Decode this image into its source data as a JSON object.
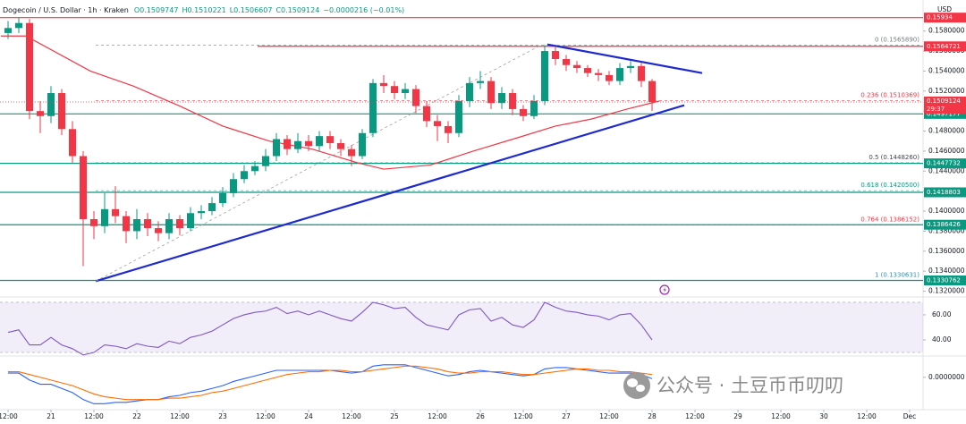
{
  "chart_data": {
    "type": "candlestick",
    "title": "Dogecoin / U.S. Dollar · 1h · Kraken",
    "header_values": [
      "O0.1509747",
      "H0.1510221",
      "L0.1506607",
      "C0.1509124",
      "−0.0000216 (−0.01%)"
    ],
    "currency": "USD",
    "up_color": "#089981",
    "down_color": "#f23645",
    "xlim": [
      9.75,
      267.75
    ],
    "xticks": [
      {
        "value": 12,
        "label": "12:00"
      },
      {
        "value": 24,
        "label": "21"
      },
      {
        "value": 36,
        "label": "12:00"
      },
      {
        "value": 48,
        "label": "22"
      },
      {
        "value": 60,
        "label": "12:00"
      },
      {
        "value": 72,
        "label": "23"
      },
      {
        "value": 84,
        "label": "12:00"
      },
      {
        "value": 96,
        "label": "24"
      },
      {
        "value": 108,
        "label": "12:00"
      },
      {
        "value": 120,
        "label": "25"
      },
      {
        "value": 132,
        "label": "12:00"
      },
      {
        "value": 144,
        "label": "26"
      },
      {
        "value": 156,
        "label": "12:00"
      },
      {
        "value": 168,
        "label": "27"
      },
      {
        "value": 180,
        "label": "12:00"
      },
      {
        "value": 192,
        "label": "28"
      },
      {
        "value": 204,
        "label": "12:00"
      },
      {
        "value": 216,
        "label": "29"
      },
      {
        "value": 228,
        "label": "12:00"
      },
      {
        "value": 240,
        "label": "30"
      },
      {
        "value": 252,
        "label": "12:00"
      },
      {
        "value": 264,
        "label": "Dec"
      }
    ],
    "ylim": [
      0.1316,
      0.1611
    ],
    "yticks": [
      {
        "value": 0.132,
        "label": "0.1320000"
      },
      {
        "value": 0.134,
        "label": "0.1340000"
      },
      {
        "value": 0.136,
        "label": "0.1360000"
      },
      {
        "value": 0.138,
        "label": "0.1380000"
      },
      {
        "value": 0.14,
        "label": "0.1400000"
      },
      {
        "value": 0.142,
        "label": "0.1420000"
      },
      {
        "value": 0.144,
        "label": "0.1440000"
      },
      {
        "value": 0.146,
        "label": "0.1460000"
      },
      {
        "value": 0.148,
        "label": "0.1480000"
      },
      {
        "value": 0.15,
        "label": "0.1500000"
      },
      {
        "value": 0.152,
        "label": "0.1520000"
      },
      {
        "value": 0.154,
        "label": "0.1540000"
      },
      {
        "value": 0.156,
        "label": "0.1560000"
      },
      {
        "value": 0.158,
        "label": "0.1580000"
      }
    ],
    "x": [
      12,
      15,
      18,
      21,
      24,
      27,
      30,
      33,
      36,
      39,
      42,
      45,
      48,
      51,
      54,
      57,
      60,
      63,
      66,
      69,
      72,
      75,
      78,
      81,
      84,
      87,
      90,
      93,
      96,
      99,
      102,
      105,
      108,
      111,
      114,
      117,
      120,
      123,
      126,
      129,
      132,
      135,
      138,
      141,
      144,
      147,
      150,
      153,
      156,
      159,
      162,
      165,
      168,
      171,
      174,
      177,
      180,
      183,
      186,
      189,
      192
    ],
    "open": [
      0.1578,
      0.1583,
      0.1588,
      0.15,
      0.1495,
      0.1518,
      0.1482,
      0.1455,
      0.1392,
      0.1385,
      0.1402,
      0.1395,
      0.138,
      0.1392,
      0.1383,
      0.1378,
      0.1392,
      0.1383,
      0.1398,
      0.14,
      0.1408,
      0.1418,
      0.1432,
      0.144,
      0.1445,
      0.1455,
      0.1472,
      0.1462,
      0.147,
      0.1465,
      0.1475,
      0.1468,
      0.1462,
      0.1455,
      0.1478,
      0.1528,
      0.1525,
      0.1518,
      0.1522,
      0.1505,
      0.149,
      0.1485,
      0.1478,
      0.151,
      0.1528,
      0.153,
      0.1508,
      0.1518,
      0.1502,
      0.1495,
      0.151,
      0.156,
      0.1552,
      0.1546,
      0.1543,
      0.1538,
      0.1536,
      0.153,
      0.1543,
      0.1545,
      0.153
    ],
    "high": [
      0.159,
      0.1593,
      0.1592,
      0.151,
      0.1525,
      0.1522,
      0.149,
      0.146,
      0.14,
      0.1418,
      0.1425,
      0.14,
      0.1402,
      0.1398,
      0.139,
      0.1398,
      0.1396,
      0.1404,
      0.1406,
      0.1414,
      0.1424,
      0.1438,
      0.1446,
      0.145,
      0.1462,
      0.1478,
      0.1476,
      0.1478,
      0.1476,
      0.148,
      0.148,
      0.1472,
      0.1466,
      0.1482,
      0.1532,
      0.1536,
      0.153,
      0.1528,
      0.1526,
      0.151,
      0.1496,
      0.149,
      0.1516,
      0.1534,
      0.154,
      0.1534,
      0.1524,
      0.1522,
      0.1506,
      0.1516,
      0.1566,
      0.1564,
      0.1556,
      0.155,
      0.1546,
      0.1542,
      0.154,
      0.1548,
      0.155,
      0.1548,
      0.1532
    ],
    "low": [
      0.1572,
      0.1578,
      0.1492,
      0.1478,
      0.1488,
      0.1476,
      0.1448,
      0.1345,
      0.1372,
      0.1378,
      0.1388,
      0.1368,
      0.1372,
      0.1375,
      0.137,
      0.1372,
      0.1376,
      0.138,
      0.1392,
      0.1396,
      0.1404,
      0.1414,
      0.1428,
      0.1436,
      0.144,
      0.145,
      0.1456,
      0.1458,
      0.146,
      0.146,
      0.1462,
      0.1455,
      0.1445,
      0.1452,
      0.1474,
      0.1518,
      0.1512,
      0.1512,
      0.1498,
      0.1484,
      0.147,
      0.1468,
      0.1474,
      0.1504,
      0.1522,
      0.1502,
      0.1502,
      0.1496,
      0.149,
      0.1492,
      0.1506,
      0.1546,
      0.154,
      0.1538,
      0.1534,
      0.153,
      0.1526,
      0.1526,
      0.1538,
      0.1524,
      0.15
    ],
    "close": [
      0.1583,
      0.1588,
      0.15,
      0.1495,
      0.1518,
      0.1482,
      0.1455,
      0.1392,
      0.1385,
      0.1402,
      0.1395,
      0.138,
      0.1392,
      0.1383,
      0.1378,
      0.1392,
      0.1383,
      0.1398,
      0.14,
      0.1408,
      0.1418,
      0.1432,
      0.144,
      0.1445,
      0.1455,
      0.1472,
      0.1462,
      0.147,
      0.1465,
      0.1475,
      0.1468,
      0.1462,
      0.1455,
      0.1478,
      0.1528,
      0.1525,
      0.1518,
      0.1522,
      0.1505,
      0.149,
      0.1485,
      0.1478,
      0.151,
      0.1528,
      0.153,
      0.1508,
      0.1518,
      0.1502,
      0.1495,
      0.151,
      0.156,
      0.1552,
      0.1546,
      0.1543,
      0.1538,
      0.1536,
      0.153,
      0.1543,
      0.1545,
      0.153,
      0.1509
    ],
    "ma": {
      "color": "#f23645",
      "x": [
        10,
        17,
        35,
        47,
        60,
        72,
        85,
        97,
        110,
        117,
        130,
        142,
        155,
        165,
        175,
        185,
        194
      ],
      "values": [
        0.1575,
        0.1575,
        0.154,
        0.1525,
        0.1505,
        0.1485,
        0.147,
        0.1462,
        0.1448,
        0.1442,
        0.1446,
        0.146,
        0.1474,
        0.1485,
        0.1492,
        0.1502,
        0.151
      ]
    },
    "levels": [
      {
        "value": 0.15934,
        "color": "#f23645"
      },
      {
        "value": 0.1564721,
        "color": "#f23645",
        "from": 81.75
      },
      {
        "value": 0.1497177,
        "color": "#089981"
      },
      {
        "value": 0.1447732,
        "color": "#089981"
      },
      {
        "value": 0.1418803,
        "color": "#089981"
      },
      {
        "value": 0.1386426,
        "color": "#089981"
      },
      {
        "value": 0.1330762,
        "color": "#089981"
      }
    ],
    "current_price": {
      "value": 0.1509124,
      "countdown": "29:37",
      "color": "#f23645"
    },
    "fib": [
      {
        "value": 0.156589,
        "label": "0 (0.1565890)",
        "color": "#787b86"
      },
      {
        "value": 0.1510369,
        "label": "0.236 (0.1510369)",
        "color": "#f23645"
      },
      {
        "value": 0.144826,
        "label": "0.5 (0.1448260)",
        "color": "#434651"
      },
      {
        "value": 0.14205,
        "label": "0.618 (0.1420500)",
        "color": "#089981"
      },
      {
        "value": 0.1386152,
        "label": "0.764 (0.1386152)",
        "color": "#f23645"
      },
      {
        "value": 0.1330631,
        "label": "1 (0.1330631)",
        "color": "#2e8fb0"
      }
    ],
    "fib_from": 36.5,
    "trendlines": [
      {
        "x": [
          36.5,
          201
        ],
        "y": [
          0.133,
          0.15058
        ],
        "color": "#1e2ad0",
        "dashed": false
      },
      {
        "x": [
          162.75,
          206
        ],
        "y": [
          0.15666,
          0.1538
        ],
        "color": "#1e2ad0",
        "dashed": false
      },
      {
        "x": [
          36.5,
          161
        ],
        "y": [
          0.133,
          0.1566
        ],
        "color": "#a0a0a0",
        "dashed": true
      }
    ],
    "rsi": {
      "color": "#7e57c2",
      "ylim": [
        29.3,
        72.1
      ],
      "band": [
        30,
        70
      ],
      "yticks": [
        {
          "value": 40,
          "label": "40.00"
        },
        {
          "value": 60,
          "label": "60.00"
        }
      ],
      "values": [
        46,
        48,
        36,
        36,
        42,
        36,
        33,
        28,
        30,
        36,
        35,
        33,
        37,
        35,
        34,
        39,
        37,
        42,
        44,
        47,
        52,
        57,
        60,
        62,
        63,
        66,
        61,
        63,
        60,
        63,
        60,
        57,
        55,
        62,
        70,
        68,
        65,
        66,
        58,
        52,
        50,
        48,
        60,
        64,
        65,
        55,
        58,
        52,
        50,
        56,
        70,
        66,
        63,
        62,
        60,
        59,
        56,
        60,
        61,
        52,
        40
      ]
    },
    "macd": {
      "color": "#2962ff",
      "signal_color": "#ff6d00",
      "ylim": [
        -0.0022,
        0.0014
      ],
      "yticks": [
        {
          "value": 0,
          "label": "0.0000000"
        }
      ],
      "values": [
        0.0003,
        0.0003,
        -0.0002,
        -0.0005,
        -0.0005,
        -0.0008,
        -0.0011,
        -0.0016,
        -0.0019,
        -0.0019,
        -0.0018,
        -0.0018,
        -0.0017,
        -0.0016,
        -0.0016,
        -0.0014,
        -0.0013,
        -0.0011,
        -0.001,
        -0.0008,
        -0.0006,
        -0.0003,
        -0.0001,
        0.0001,
        0.0003,
        0.0005,
        0.0005,
        0.0005,
        0.0005,
        0.0005,
        0.0005,
        0.0004,
        0.0003,
        0.0004,
        0.0008,
        0.0009,
        0.0009,
        0.0009,
        0.0007,
        0.0005,
        0.0003,
        0.0001,
        0.0002,
        0.0004,
        0.0005,
        0.0004,
        0.0003,
        0.0002,
        0.0001,
        0.0002,
        0.0006,
        0.0007,
        0.0007,
        0.0006,
        0.0005,
        0.0004,
        0.0003,
        0.0003,
        0.0003,
        0.0002,
        -0.0001
      ],
      "signal": [
        0.0004,
        0.0004,
        0.0002,
        0.0,
        -0.0002,
        -0.0004,
        -0.0006,
        -0.0009,
        -0.0012,
        -0.0014,
        -0.0015,
        -0.0016,
        -0.0016,
        -0.0016,
        -0.0016,
        -0.0015,
        -0.0015,
        -0.0014,
        -0.0013,
        -0.0011,
        -0.001,
        -0.0008,
        -0.0006,
        -0.0004,
        -0.0002,
        0.0,
        0.0002,
        0.0003,
        0.0004,
        0.0004,
        0.0005,
        0.0005,
        0.0004,
        0.0004,
        0.0005,
        0.0006,
        0.0007,
        0.0008,
        0.0008,
        0.0007,
        0.0006,
        0.0004,
        0.0003,
        0.0003,
        0.0004,
        0.0004,
        0.0004,
        0.0003,
        0.0002,
        0.0002,
        0.0003,
        0.0004,
        0.0005,
        0.0006,
        0.0006,
        0.0005,
        0.0005,
        0.0004,
        0.0004,
        0.0003,
        0.0002
      ]
    },
    "watermark": "公众号 · 土豆币币叨叨"
  }
}
